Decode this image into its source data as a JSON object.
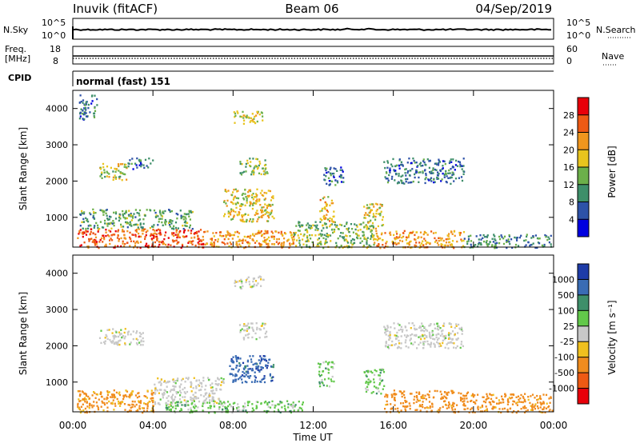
{
  "header": {
    "station": "Inuvik (fitACF)",
    "beam": "Beam 06",
    "date": "04/Sep/2019"
  },
  "summary_panels": {
    "nsky": {
      "label": "N.Sky",
      "ticks": [
        "10^5",
        "10^0"
      ]
    },
    "nsearch": {
      "label": "N.Search",
      "ticks": [
        "10^5",
        "10^0"
      ]
    },
    "freq": {
      "label_line1": "Freq.",
      "label_line2": "[MHz]",
      "ticks": [
        "18",
        "8"
      ]
    },
    "nave": {
      "label": "Nave",
      "ticks": [
        "60",
        "0"
      ]
    },
    "cpid": {
      "label": "CPID",
      "value": "normal (fast) 151"
    }
  },
  "x_axis": {
    "label": "Time UT",
    "ticks": [
      "00:00",
      "04:00",
      "08:00",
      "12:00",
      "16:00",
      "20:00",
      "00:00"
    ]
  },
  "chart_data": [
    {
      "type": "heatmap",
      "title": "",
      "xlabel": "Time UT",
      "ylabel": "Slant Range [km]",
      "x_range_hours": [
        0,
        24
      ],
      "ylim": [
        180,
        4500
      ],
      "y_ticks": [
        1000,
        2000,
        3000,
        4000
      ],
      "colorbar": {
        "label": "Power [dB]",
        "ticks": [
          "4",
          "8",
          "12",
          "16",
          "20",
          "24",
          "28"
        ],
        "tick_values": [
          4,
          8,
          12,
          16,
          20,
          24,
          28
        ],
        "range": [
          0,
          30
        ],
        "colors": [
          "#0000e0",
          "#2d52a8",
          "#3e8f6a",
          "#6cb04a",
          "#e8c41e",
          "#f0961e",
          "#ee5a14",
          "#e8000a"
        ]
      },
      "scatter_regions": [
        {
          "t0": 0.2,
          "t1": 6.5,
          "r0": 180,
          "r1": 700,
          "value": 26
        },
        {
          "t0": 6.5,
          "t1": 11.0,
          "r0": 180,
          "r1": 650,
          "value": 22
        },
        {
          "t0": 11.0,
          "t1": 15.0,
          "r0": 180,
          "r1": 900,
          "value": 14
        },
        {
          "t0": 15.0,
          "t1": 19.5,
          "r0": 180,
          "r1": 650,
          "value": 22
        },
        {
          "t0": 19.5,
          "t1": 23.9,
          "r0": 180,
          "r1": 550,
          "value": 10
        },
        {
          "t0": 0.3,
          "t1": 6.0,
          "r0": 700,
          "r1": 1250,
          "value": 12
        },
        {
          "t0": 7.5,
          "t1": 10.0,
          "r0": 900,
          "r1": 1800,
          "value": 18
        },
        {
          "t0": 12.3,
          "t1": 13.0,
          "r0": 900,
          "r1": 1600,
          "value": 20
        },
        {
          "t0": 14.5,
          "t1": 15.5,
          "r0": 700,
          "r1": 1400,
          "value": 18
        },
        {
          "t0": 1.3,
          "t1": 2.7,
          "r0": 2050,
          "r1": 2500,
          "value": 16
        },
        {
          "t0": 2.7,
          "t1": 4.0,
          "r0": 2350,
          "r1": 2650,
          "value": 8
        },
        {
          "t0": 8.3,
          "t1": 9.7,
          "r0": 2200,
          "r1": 2650,
          "value": 14
        },
        {
          "t0": 15.5,
          "t1": 19.5,
          "r0": 1950,
          "r1": 2650,
          "value": 8
        },
        {
          "t0": 12.5,
          "t1": 13.5,
          "r0": 1900,
          "r1": 2400,
          "value": 8
        },
        {
          "t0": 8.0,
          "t1": 9.5,
          "r0": 3600,
          "r1": 3950,
          "value": 18
        },
        {
          "t0": 0.3,
          "t1": 1.2,
          "r0": 3700,
          "r1": 4400,
          "value": 8
        }
      ]
    },
    {
      "type": "heatmap",
      "title": "",
      "xlabel": "Time UT",
      "ylabel": "Slant Range [km]",
      "x_range_hours": [
        0,
        24
      ],
      "ylim": [
        180,
        4500
      ],
      "y_ticks": [
        1000,
        2000,
        3000,
        4000
      ],
      "colorbar": {
        "label": "Velocity [m s⁻¹]",
        "ticks": [
          "1000",
          "500",
          "100",
          "25",
          "-25",
          "-100",
          "-500",
          "-1000"
        ],
        "colors": [
          "#1e3ca8",
          "#3a6cb4",
          "#3e8f6a",
          "#62c84a",
          "#c8c8c8",
          "#f0c01e",
          "#f08c1e",
          "#ee5a14",
          "#e8000a"
        ]
      },
      "scatter_regions": [
        {
          "t0": 0.2,
          "t1": 4.0,
          "r0": 180,
          "r1": 800,
          "value": -150
        },
        {
          "t0": 4.0,
          "t1": 7.5,
          "r0": 400,
          "r1": 1150,
          "value": 0
        },
        {
          "t0": 4.5,
          "t1": 11.5,
          "r0": 180,
          "r1": 500,
          "value": 60
        },
        {
          "t0": 7.8,
          "t1": 10.0,
          "r0": 1000,
          "r1": 1750,
          "value": 800
        },
        {
          "t0": 12.2,
          "t1": 13.0,
          "r0": 900,
          "r1": 1600,
          "value": 60
        },
        {
          "t0": 14.5,
          "t1": 15.5,
          "r0": 700,
          "r1": 1400,
          "value": 60
        },
        {
          "t0": 15.5,
          "t1": 19.8,
          "r0": 180,
          "r1": 800,
          "value": -200
        },
        {
          "t0": 19.8,
          "t1": 23.9,
          "r0": 180,
          "r1": 700,
          "value": -200
        },
        {
          "t0": 1.3,
          "t1": 3.5,
          "r0": 2050,
          "r1": 2500,
          "value": 0
        },
        {
          "t0": 8.3,
          "t1": 9.7,
          "r0": 2200,
          "r1": 2650,
          "value": 0
        },
        {
          "t0": 15.5,
          "t1": 19.5,
          "r0": 1950,
          "r1": 2650,
          "value": 0
        },
        {
          "t0": 8.0,
          "t1": 9.5,
          "r0": 3600,
          "r1": 3950,
          "value": 0
        }
      ]
    }
  ]
}
